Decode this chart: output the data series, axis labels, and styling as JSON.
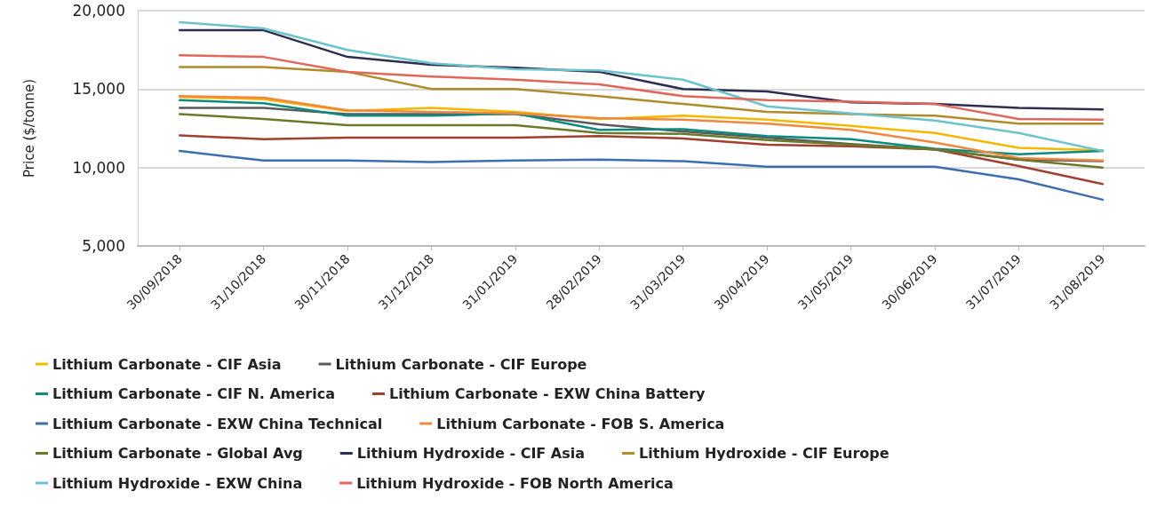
{
  "chart_data": {
    "type": "line",
    "ylabel": "Price ($/tonne)",
    "categories": [
      "30/09/2018",
      "31/10/2018",
      "30/11/2018",
      "31/12/2018",
      "31/01/2019",
      "28/02/2019",
      "31/03/2019",
      "30/04/2019",
      "31/05/2019",
      "30/06/2019",
      "31/07/2019",
      "31/08/2019"
    ],
    "ylim": [
      5000,
      20000
    ],
    "yticks": [
      {
        "value": 5000,
        "label": "5,000"
      },
      {
        "value": 10000,
        "label": "10,000"
      },
      {
        "value": 15000,
        "label": "15,000"
      },
      {
        "value": 20000,
        "label": "20,000"
      }
    ],
    "grid": "y",
    "legend": "bottom",
    "marker": "none",
    "line_style": "solid",
    "series": [
      {
        "name": "Lithium Carbonate - CIF Asia",
        "color": "#f5b800",
        "values": [
          14500,
          14350,
          13600,
          13800,
          13550,
          13100,
          13300,
          13050,
          12650,
          12200,
          11250,
          11100
        ]
      },
      {
        "name": "Lithium Carbonate - CIF Europe",
        "color": "#5a5a5a",
        "values": [
          13800,
          13800,
          13400,
          13400,
          13400,
          12750,
          12300,
          11900,
          11500,
          11150,
          10500,
          10400
        ]
      },
      {
        "name": "Lithium Carbonate - CIF N. America",
        "color": "#0e8a7e",
        "values": [
          14300,
          14100,
          13300,
          13300,
          13450,
          12400,
          12450,
          12000,
          11800,
          11200,
          10850,
          11050
        ]
      },
      {
        "name": "Lithium Carbonate - EXW China Battery",
        "color": "#a0402e",
        "values": [
          12050,
          11800,
          11900,
          11900,
          11900,
          12000,
          11850,
          11450,
          11350,
          11150,
          10100,
          8950
        ]
      },
      {
        "name": "Lithium Carbonate - EXW China Technical",
        "color": "#3d6fb0",
        "values": [
          11050,
          10450,
          10450,
          10350,
          10450,
          10500,
          10400,
          10050,
          10050,
          10050,
          9250,
          7950
        ]
      },
      {
        "name": "Lithium Carbonate - FOB S. America",
        "color": "#f0883e",
        "values": [
          14550,
          14450,
          13650,
          13550,
          13450,
          13150,
          13050,
          12800,
          12400,
          11600,
          10600,
          10450
        ]
      },
      {
        "name": "Lithium Carbonate - Global Avg",
        "color": "#6b7a2a",
        "values": [
          13400,
          13100,
          12700,
          12700,
          12700,
          12200,
          12150,
          11750,
          11450,
          11150,
          10500,
          10000
        ]
      },
      {
        "name": "Lithium Hydroxide - CIF Asia",
        "color": "#2e2e52",
        "values": [
          18750,
          18750,
          17050,
          16550,
          16370,
          16100,
          15000,
          14850,
          14150,
          14050,
          13800,
          13700
        ]
      },
      {
        "name": "Lithium Hydroxide - CIF Europe",
        "color": "#b08b2a",
        "values": [
          16400,
          16400,
          16100,
          15000,
          15000,
          14550,
          14050,
          13550,
          13400,
          13300,
          12800,
          12800
        ]
      },
      {
        "name": "Lithium Hydroxide - EXW China",
        "color": "#6cc3cc",
        "values": [
          19260,
          18870,
          17500,
          16650,
          16270,
          16200,
          15600,
          13900,
          13450,
          13000,
          12200,
          11050
        ]
      },
      {
        "name": "Lithium Hydroxide - FOB North America",
        "color": "#e0675a",
        "values": [
          17150,
          17050,
          16100,
          15800,
          15600,
          15300,
          14550,
          14300,
          14200,
          14050,
          13100,
          13050
        ]
      }
    ]
  }
}
